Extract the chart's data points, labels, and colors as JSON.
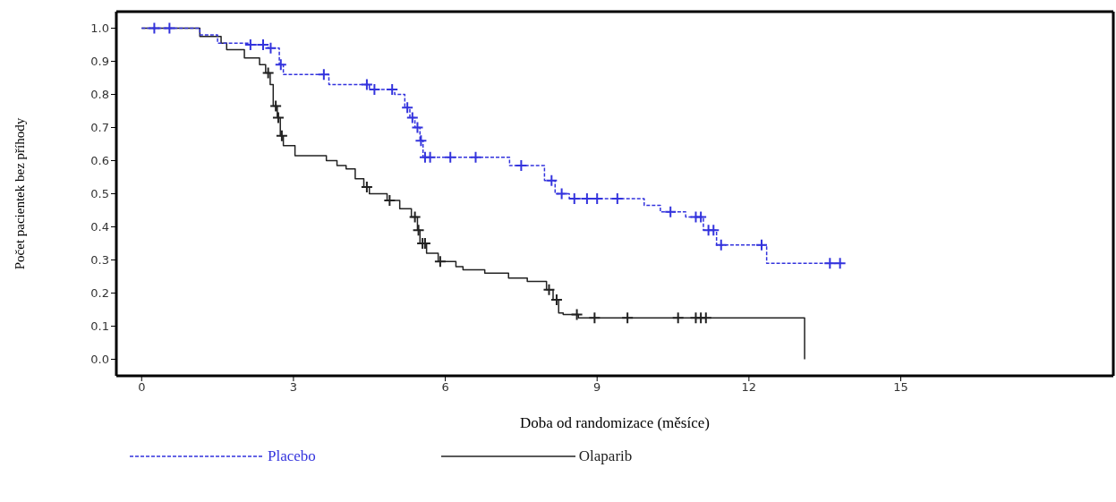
{
  "chart_data": {
    "type": "step",
    "xlabel": "Doba od randomizace (měsíce)",
    "ylabel": "Počet pacientek bez příhody",
    "xlim": [
      -0.5,
      19.2
    ],
    "ylim": [
      -0.05,
      1.05
    ],
    "xticks": [
      0,
      3,
      6,
      9,
      12,
      15
    ],
    "yticks": [
      {
        "value": 0,
        "label": "0.0"
      },
      {
        "value": 0.1,
        "label": "0.1"
      },
      {
        "value": 0.2,
        "label": "0.2"
      },
      {
        "value": 0.3,
        "label": "0.3"
      },
      {
        "value": 0.4,
        "label": "0.4"
      },
      {
        "value": 0.5,
        "label": "0.5"
      },
      {
        "value": 0.6,
        "label": "0.6"
      },
      {
        "value": 0.7,
        "label": "0.7"
      },
      {
        "value": 0.8,
        "label": "0.8"
      },
      {
        "value": 0.9,
        "label": "0.9"
      },
      {
        "value": 1,
        "label": "1.0"
      }
    ],
    "legend": "bottom",
    "grid": false,
    "series": [
      {
        "name": "Placebo",
        "color": "#3333dd",
        "line_style": "dashed",
        "x": [
          0,
          1.15,
          1.5,
          2.15,
          2.5,
          2.72,
          2.8,
          3.7,
          4.5,
          5.0,
          5.2,
          5.3,
          5.4,
          5.5,
          5.56,
          7.27,
          7.96,
          8.17,
          8.45,
          9.93,
          10.25,
          10.75,
          11.1,
          11.36,
          12.35,
          13.83
        ],
        "values": [
          1,
          0.98,
          0.955,
          0.95,
          0.94,
          0.89,
          0.86,
          0.83,
          0.815,
          0.8,
          0.76,
          0.73,
          0.7,
          0.66,
          0.61,
          0.585,
          0.54,
          0.5,
          0.485,
          0.465,
          0.445,
          0.43,
          0.39,
          0.345,
          0.29,
          0.29
        ]
      },
      {
        "name": "Olaparib",
        "color": "#222222",
        "line_style": "solid",
        "x": [
          0,
          1.15,
          1.57,
          1.68,
          2.03,
          2.33,
          2.45,
          2.54,
          2.6,
          2.68,
          2.74,
          2.8,
          3.03,
          3.65,
          3.86,
          4.04,
          4.22,
          4.39,
          4.5,
          4.85,
          5.1,
          5.33,
          5.45,
          5.5,
          5.63,
          5.86,
          6.21,
          6.35,
          6.78,
          7.25,
          7.62,
          8.0,
          8.13,
          8.24,
          8.33,
          8.63,
          13.1,
          13.1
        ],
        "values": [
          1,
          0.975,
          0.955,
          0.935,
          0.91,
          0.89,
          0.865,
          0.83,
          0.765,
          0.73,
          0.675,
          0.645,
          0.615,
          0.6,
          0.585,
          0.575,
          0.545,
          0.52,
          0.5,
          0.48,
          0.455,
          0.43,
          0.39,
          0.35,
          0.32,
          0.295,
          0.28,
          0.27,
          0.26,
          0.245,
          0.235,
          0.21,
          0.18,
          0.14,
          0.135,
          0.125,
          0.125,
          0
        ]
      },
      {
        "type": "scatter",
        "marker": "cross",
        "color": "#3333dd",
        "x": [
          0.25,
          0.55,
          2.15,
          2.4,
          2.55,
          2.75,
          3.6,
          4.45,
          4.6,
          4.95,
          5.25,
          5.35,
          5.45,
          5.52,
          5.6,
          5.7,
          6.1,
          6.6,
          7.5,
          8.1,
          8.3,
          8.55,
          8.8,
          9.0,
          9.4,
          10.45,
          10.95,
          11.05,
          11.2,
          11.3,
          11.45,
          12.25,
          13.6,
          13.8
        ],
        "values": [
          1,
          1,
          0.95,
          0.95,
          0.94,
          0.89,
          0.86,
          0.83,
          0.815,
          0.815,
          0.76,
          0.73,
          0.7,
          0.66,
          0.61,
          0.61,
          0.61,
          0.61,
          0.585,
          0.54,
          0.5,
          0.485,
          0.485,
          0.485,
          0.485,
          0.445,
          0.43,
          0.43,
          0.39,
          0.39,
          0.345,
          0.345,
          0.29,
          0.29
        ]
      },
      {
        "type": "scatter",
        "marker": "cross",
        "color": "#222222",
        "x": [
          2.5,
          2.65,
          2.7,
          2.77,
          4.45,
          4.9,
          5.4,
          5.47,
          5.55,
          5.6,
          5.9,
          8.05,
          8.2,
          8.6,
          8.95,
          9.6,
          10.6,
          10.95,
          11.05,
          11.15
        ],
        "values": [
          0.865,
          0.765,
          0.73,
          0.675,
          0.52,
          0.48,
          0.43,
          0.39,
          0.35,
          0.35,
          0.295,
          0.21,
          0.18,
          0.135,
          0.125,
          0.125,
          0.125,
          0.125,
          0.125,
          0.125
        ]
      }
    ]
  }
}
